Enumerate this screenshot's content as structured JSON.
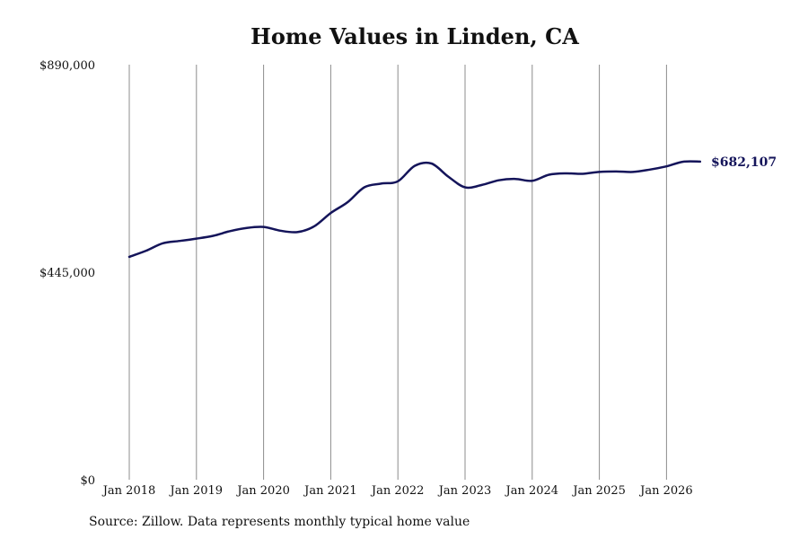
{
  "chart_data": {
    "type": "line",
    "title": "Home Values in Linden, CA",
    "xlabel": "",
    "ylabel": "",
    "x_range": [
      "2018-01",
      "2026-07"
    ],
    "ylim": [
      0,
      890000
    ],
    "y_ticks": [
      0,
      445000,
      890000
    ],
    "y_tick_labels": [
      "$0",
      "$445,000",
      "$890,000"
    ],
    "x_ticks": [
      "2018-01",
      "2019-01",
      "2020-01",
      "2021-01",
      "2022-01",
      "2023-01",
      "2024-01",
      "2025-01",
      "2026-01"
    ],
    "x_tick_labels": [
      "Jan 2018",
      "Jan 2019",
      "Jan 2020",
      "Jan 2021",
      "Jan 2022",
      "Jan 2023",
      "Jan 2024",
      "Jan 2025",
      "Jan 2026"
    ],
    "grid": "vertical",
    "line_color": "#14145a",
    "end_label": "$682,107",
    "series": [
      {
        "x": [
          "2018-01",
          "2018-04",
          "2018-07",
          "2018-10",
          "2019-01",
          "2019-04",
          "2019-07",
          "2019-10",
          "2020-01",
          "2020-04",
          "2020-07",
          "2020-10",
          "2021-01",
          "2021-04",
          "2021-07",
          "2021-10",
          "2022-01",
          "2022-04",
          "2022-07",
          "2022-10",
          "2023-01",
          "2023-04",
          "2023-07",
          "2023-10",
          "2024-01",
          "2024-04",
          "2024-07",
          "2024-10",
          "2025-01",
          "2025-04",
          "2025-07",
          "2025-10",
          "2026-01",
          "2026-04",
          "2026-07"
        ],
        "values": [
          478000,
          491000,
          507000,
          512000,
          517000,
          523000,
          533000,
          540000,
          542000,
          534000,
          531000,
          543000,
          572000,
          595000,
          627000,
          635000,
          640000,
          673000,
          678000,
          650000,
          627000,
          632000,
          642000,
          645000,
          641000,
          654000,
          657000,
          656000,
          660000,
          661000,
          660000,
          665000,
          672000,
          682000,
          682107
        ]
      }
    ]
  },
  "source_note": "Source: Zillow. Data represents monthly typical home value"
}
